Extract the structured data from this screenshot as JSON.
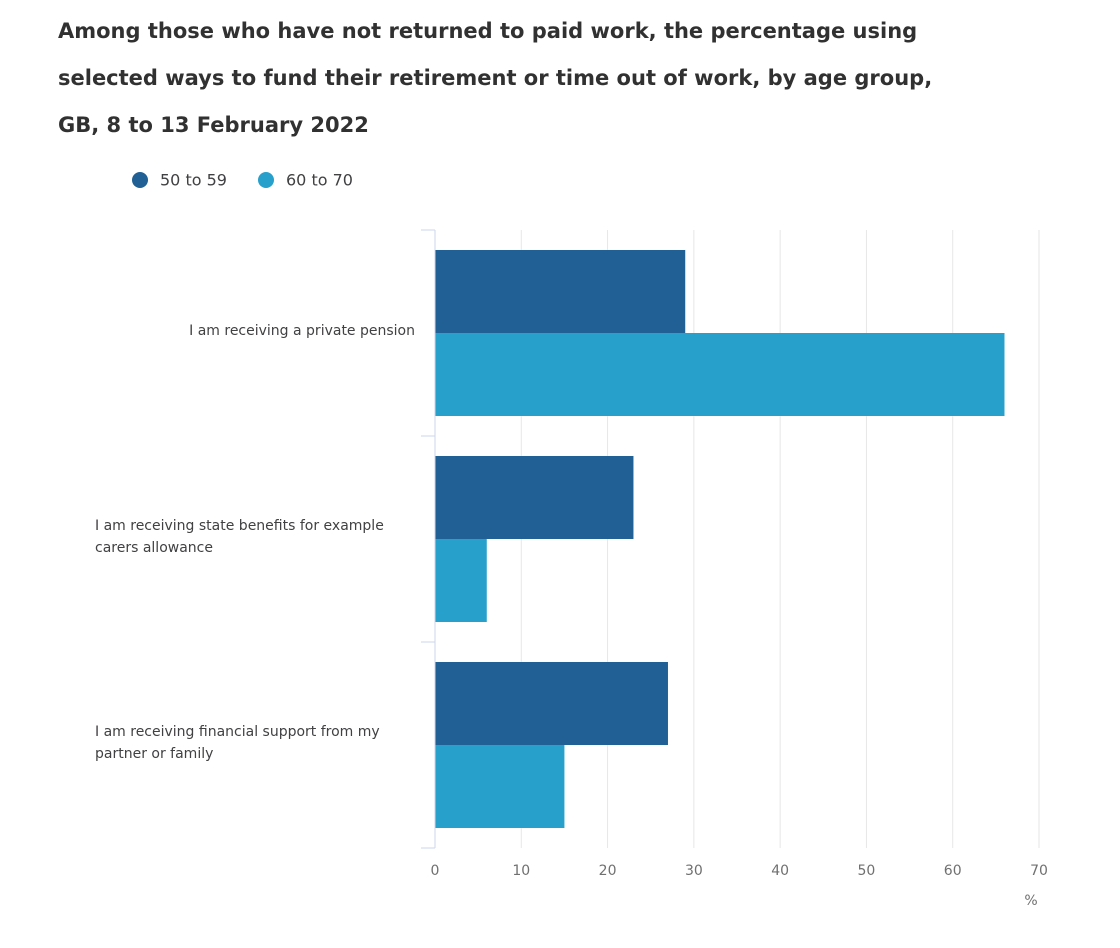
{
  "chart_data": {
    "type": "bar",
    "orientation": "horizontal",
    "title": "Among those who have not returned to paid work, the percentage using selected ways to fund their retirement or time out of work, by age group, GB, 8 to 13 February 2022",
    "categories": [
      "I am receiving a private pension",
      "I am receiving state benefits for example carers allowance",
      "I am receiving financial support from my partner or family"
    ],
    "series": [
      {
        "name": "50 to 59",
        "color": "#206095",
        "values": [
          29,
          23,
          27
        ]
      },
      {
        "name": "60 to 70",
        "color": "#27a0cc",
        "values": [
          66,
          6,
          15
        ]
      }
    ],
    "xlim": [
      0,
      70
    ],
    "xticks": [
      0,
      10,
      20,
      30,
      40,
      50,
      60,
      70
    ],
    "x_label": "%",
    "grid": true
  }
}
